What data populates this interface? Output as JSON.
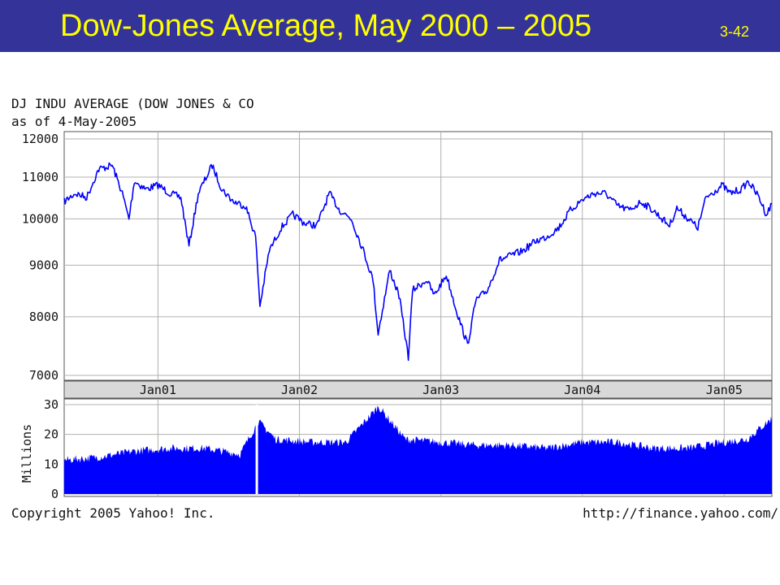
{
  "slide": {
    "title": "Dow-Jones Average, May 2000 – 2005",
    "number": "3-42"
  },
  "colors": {
    "banner": "#333399",
    "title_text": "#ffff00",
    "series": "#0000ff",
    "grid": "#b0b0b0",
    "axis_strip": "#d8d8d8"
  },
  "chart_data": [
    {
      "type": "line",
      "title": "DJ INDU AVERAGE (DOW JONES & CO",
      "subtitle": "as of 4-May-2005",
      "y_scale": "log",
      "ylim": [
        7000,
        12000
      ],
      "yticks": [
        7000,
        8000,
        9000,
        10000,
        11000,
        12000
      ],
      "ytick_labels": [
        "7000",
        "8000",
        "9000",
        "10000",
        "11000",
        "12000"
      ],
      "x_range": [
        "2000-05-04",
        "2005-05-04"
      ],
      "xtick_labels": [
        "Jan01",
        "Jan02",
        "Jan03",
        "Jan04",
        "Jan05"
      ],
      "xtick_dates": [
        "2001-01-01",
        "2002-01-01",
        "2003-01-01",
        "2004-01-01",
        "2005-01-01"
      ],
      "grid": true,
      "series": [
        {
          "x": [
            "2000-05-04",
            "2000-06-01",
            "2000-07-01",
            "2000-08-01",
            "2000-09-05",
            "2000-10-01",
            "2000-10-18",
            "2000-11-01",
            "2000-12-01",
            "2001-01-01",
            "2001-02-01",
            "2001-03-01",
            "2001-03-22",
            "2001-04-15",
            "2001-05-21",
            "2001-06-15",
            "2001-07-15",
            "2001-08-15",
            "2001-09-10",
            "2001-09-21",
            "2001-10-15",
            "2001-11-15",
            "2001-12-15",
            "2002-01-15",
            "2002-02-15",
            "2002-03-19",
            "2002-04-15",
            "2002-05-15",
            "2002-06-15",
            "2002-07-10",
            "2002-07-23",
            "2002-08-22",
            "2002-09-15",
            "2002-10-09",
            "2002-10-20",
            "2002-11-25",
            "2002-12-15",
            "2003-01-15",
            "2003-02-15",
            "2003-03-11",
            "2003-04-01",
            "2003-05-01",
            "2003-06-01",
            "2003-07-01",
            "2003-08-01",
            "2003-09-01",
            "2003-10-01",
            "2003-11-01",
            "2003-12-01",
            "2004-01-01",
            "2004-02-01",
            "2004-03-01",
            "2004-04-01",
            "2004-05-01",
            "2004-06-01",
            "2004-07-01",
            "2004-08-13",
            "2004-09-01",
            "2004-10-25",
            "2004-11-15",
            "2004-12-28",
            "2005-01-15",
            "2005-02-15",
            "2005-03-04",
            "2005-04-01",
            "2005-04-20",
            "2005-05-04"
          ],
          "y": [
            10400,
            10600,
            10500,
            11200,
            11300,
            10600,
            10000,
            10900,
            10700,
            10800,
            10600,
            10500,
            9400,
            10600,
            11300,
            10700,
            10400,
            10300,
            9600,
            8200,
            9300,
            9800,
            10100,
            9900,
            9850,
            10600,
            10200,
            10000,
            9300,
            8700,
            7700,
            8900,
            8400,
            7300,
            8500,
            8700,
            8400,
            8800,
            8000,
            7500,
            8300,
            8500,
            9100,
            9200,
            9300,
            9500,
            9600,
            9800,
            10200,
            10450,
            10600,
            10600,
            10300,
            10200,
            10400,
            10200,
            9850,
            10250,
            9800,
            10500,
            10800,
            10600,
            10700,
            10900,
            10500,
            10100,
            10350
          ]
        }
      ]
    },
    {
      "type": "bar",
      "ylabel": "Millions",
      "ylim": [
        0,
        30
      ],
      "yticks": [
        0,
        10,
        20,
        30
      ],
      "ytick_labels": [
        "0",
        "10",
        "20",
        "30"
      ],
      "x_range": [
        "2000-05-04",
        "2005-05-04"
      ],
      "grid": true,
      "series": [
        {
          "x": [
            "2000-05-04",
            "2000-08-01",
            "2000-11-01",
            "2001-02-01",
            "2001-05-01",
            "2001-08-01",
            "2001-09-17",
            "2001-11-01",
            "2002-02-01",
            "2002-05-01",
            "2002-07-24",
            "2002-10-01",
            "2003-01-01",
            "2003-04-01",
            "2003-07-01",
            "2003-10-01",
            "2004-01-01",
            "2004-04-01",
            "2004-07-01",
            "2004-10-01",
            "2005-01-01",
            "2005-03-01",
            "2005-05-04"
          ],
          "values": [
            10,
            11,
            13,
            14,
            14,
            12,
            23,
            17,
            16,
            16,
            28,
            17,
            16,
            15,
            15,
            14,
            16,
            16,
            14,
            14,
            16,
            17,
            24
          ]
        }
      ]
    }
  ],
  "footer": {
    "copyright": "Copyright 2005 Yahoo! Inc.",
    "url": "http://finance.yahoo.com/"
  }
}
